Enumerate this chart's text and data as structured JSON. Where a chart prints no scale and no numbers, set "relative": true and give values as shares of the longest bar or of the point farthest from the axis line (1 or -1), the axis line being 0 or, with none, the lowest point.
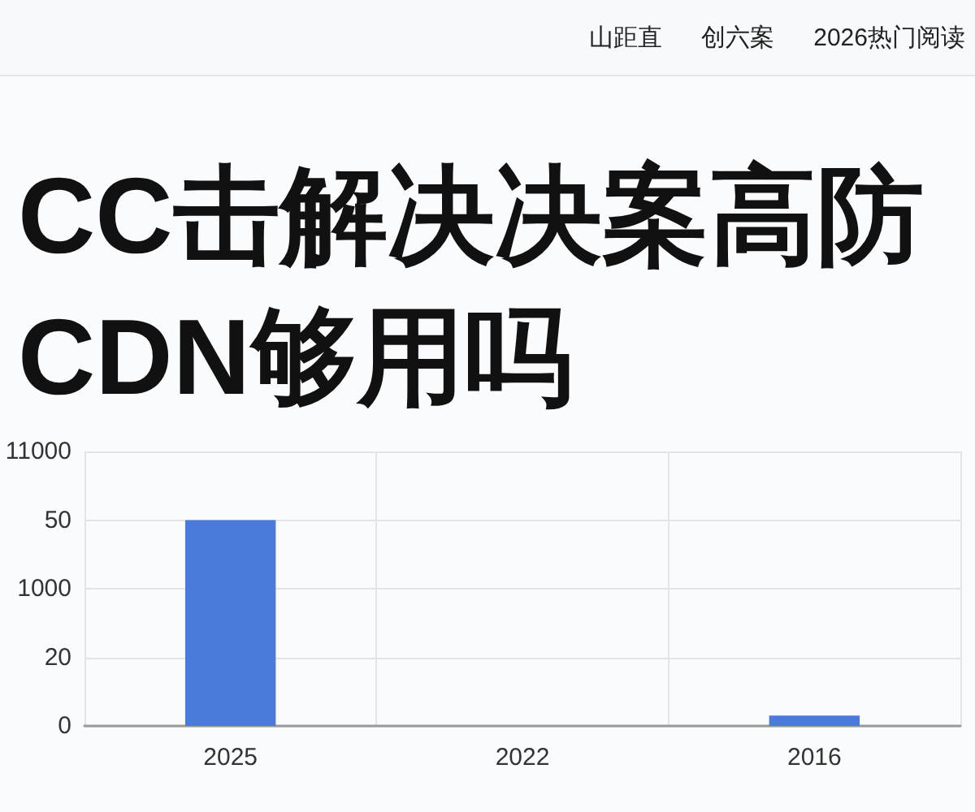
{
  "chart_data": {
    "type": "bar",
    "title": "CC击解决决案高防CDN够用吗",
    "annotations": [
      "山距直",
      "创六案",
      "2026热门阅读",
      "11000",
      "50",
      "1000",
      "20",
      "0"
    ],
    "categories": [
      "2025",
      "2022",
      "2016"
    ],
    "values": [
      1,
      0,
      0.05
    ],
    "color": "#4a7bdc",
    "relative": true,
    "grid": true
  }
}
